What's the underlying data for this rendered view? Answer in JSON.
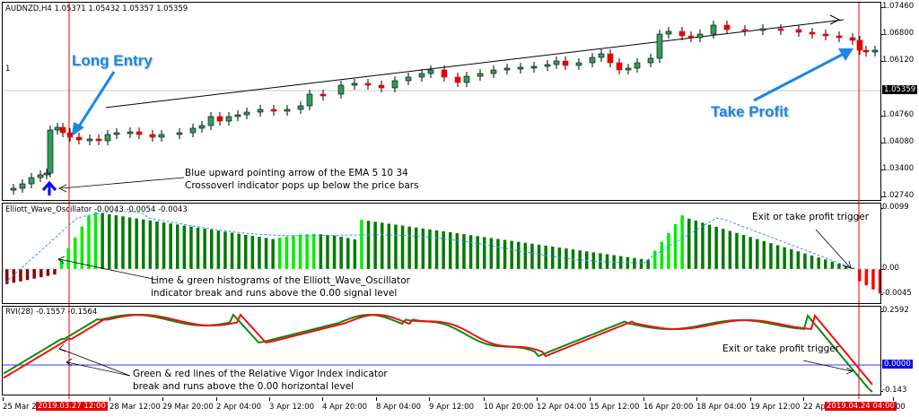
{
  "main_chart": {
    "title": "AUDNZD,H4  1.05371 1.05432 1.05357 1.05359",
    "symbol": "AUDNZD",
    "timeframe": "H4",
    "ohlc": {
      "open": "1.05371",
      "high": "1.05432",
      "low": "1.05357",
      "close": "1.05359"
    },
    "level_marker": "1",
    "price_ticks": [
      "1.07460",
      "1.06800",
      "1.06120",
      "1.04760",
      "1.04080",
      "1.03400",
      "1.02740"
    ],
    "current_price": "1.05359",
    "labels": {
      "long_entry": "Long Entry",
      "take_profit": "Take Profit",
      "ema_note_line1": "Blue upward pointing arrow of the EMA 5 10 34",
      "ema_note_line2": "Crossoverl indicator pops up below the price bars"
    },
    "colors": {
      "bull": "#2e9e5b",
      "bear": "#e60000",
      "vline": "#e60000",
      "arrow_blue": "#0000ff",
      "callout": "#1a86e6"
    }
  },
  "oscillator": {
    "title": "Elliott_Wave_Oscillator -0.0043 -0.0054 -0.0043",
    "ticks": [
      "0.0099",
      "0.00",
      "-0.0045"
    ],
    "note_line1": "Lime & green histograms of the Elliott_Wave_Oscillator",
    "note_line2": "indicator break and runs above the 0.00 signal level",
    "exit_note": "Exit or take profit trigger",
    "colors": {
      "lime": "#00ee00",
      "green": "#007a00",
      "maroon": "#8b0000",
      "red": "#ff0000",
      "signal": "#3399ff"
    }
  },
  "rvi": {
    "title": "RVI(28) -0.1557 -0.1564",
    "ticks": [
      "0.2592",
      "-0.143"
    ],
    "zero_badge": "0.0000",
    "note_line1": "Green & red lines of the Relative Vigor Index indicator",
    "note_line2": "break and runs above the 0.00 horizontal level",
    "exit_note": "Exit or take profit trigger",
    "colors": {
      "main": "#118811",
      "signal": "#ee1111",
      "zero": "#3333ff"
    }
  },
  "time_axis": {
    "labels": [
      "25 Mar 20",
      "28 Mar 12:00",
      "29 Mar 20:00",
      "2 Apr 04:00",
      "3 Apr 12:00",
      "4 Apr 20:00",
      "8 Apr 04:00",
      "9 Apr 12:00",
      "10 Apr 20:00",
      "12 Apr 04:00",
      "15 Apr 12:00",
      "16 Apr 20:00",
      "18 Apr 04:00",
      "19 Apr 12:00",
      "22 Ap",
      ":00"
    ],
    "entry_marker": "2019.03.27 12:00",
    "exit_marker": "2019.04.24 04:00"
  }
}
